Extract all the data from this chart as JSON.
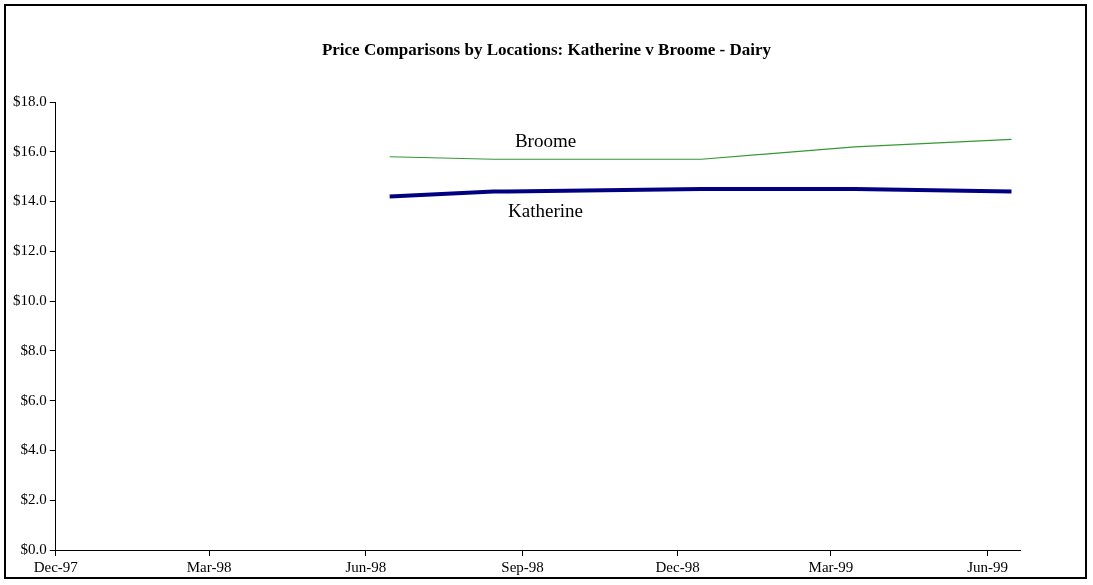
{
  "chart_data": {
    "type": "line",
    "title": "Price Comparisons by Locations: Katherine v Broome - Dairy",
    "x": [
      "1998-06-15",
      "1998-08-15",
      "1998-12-15",
      "1999-03-15",
      "1999-06-15"
    ],
    "series": [
      {
        "name": "Broome",
        "color": "#339933",
        "values": [
          15.8,
          15.7,
          15.7,
          16.2,
          16.5
        ]
      },
      {
        "name": "Katherine",
        "color": "#000080",
        "values": [
          14.2,
          14.4,
          14.5,
          14.5,
          14.4
        ]
      }
    ],
    "xlim": [
      "1997-12",
      "1999-06-20"
    ],
    "xticks": [
      {
        "value": "1997-12",
        "label": "Dec-97"
      },
      {
        "value": "1998-03",
        "label": "Mar-98"
      },
      {
        "value": "1998-06",
        "label": "Jun-98"
      },
      {
        "value": "1998-09",
        "label": "Sep-98"
      },
      {
        "value": "1998-12",
        "label": "Dec-98"
      },
      {
        "value": "1999-03",
        "label": "Mar-99"
      },
      {
        "value": "1999-06",
        "label": "Jun-99"
      }
    ],
    "ylim": [
      0,
      18
    ],
    "yticks": [
      {
        "value": 0,
        "label": "$0.0"
      },
      {
        "value": 2,
        "label": "$2.0"
      },
      {
        "value": 4,
        "label": "$4.0"
      },
      {
        "value": 6,
        "label": "$6.0"
      },
      {
        "value": 8,
        "label": "$8.0"
      },
      {
        "value": 10,
        "label": "$10.0"
      },
      {
        "value": 12,
        "label": "$12.0"
      },
      {
        "value": 14,
        "label": "$14.0"
      },
      {
        "value": 16,
        "label": "$16.0"
      },
      {
        "value": 18,
        "label": "$18.0"
      }
    ],
    "grid": false,
    "legend": false,
    "marker": "none",
    "line_style": "solid"
  }
}
